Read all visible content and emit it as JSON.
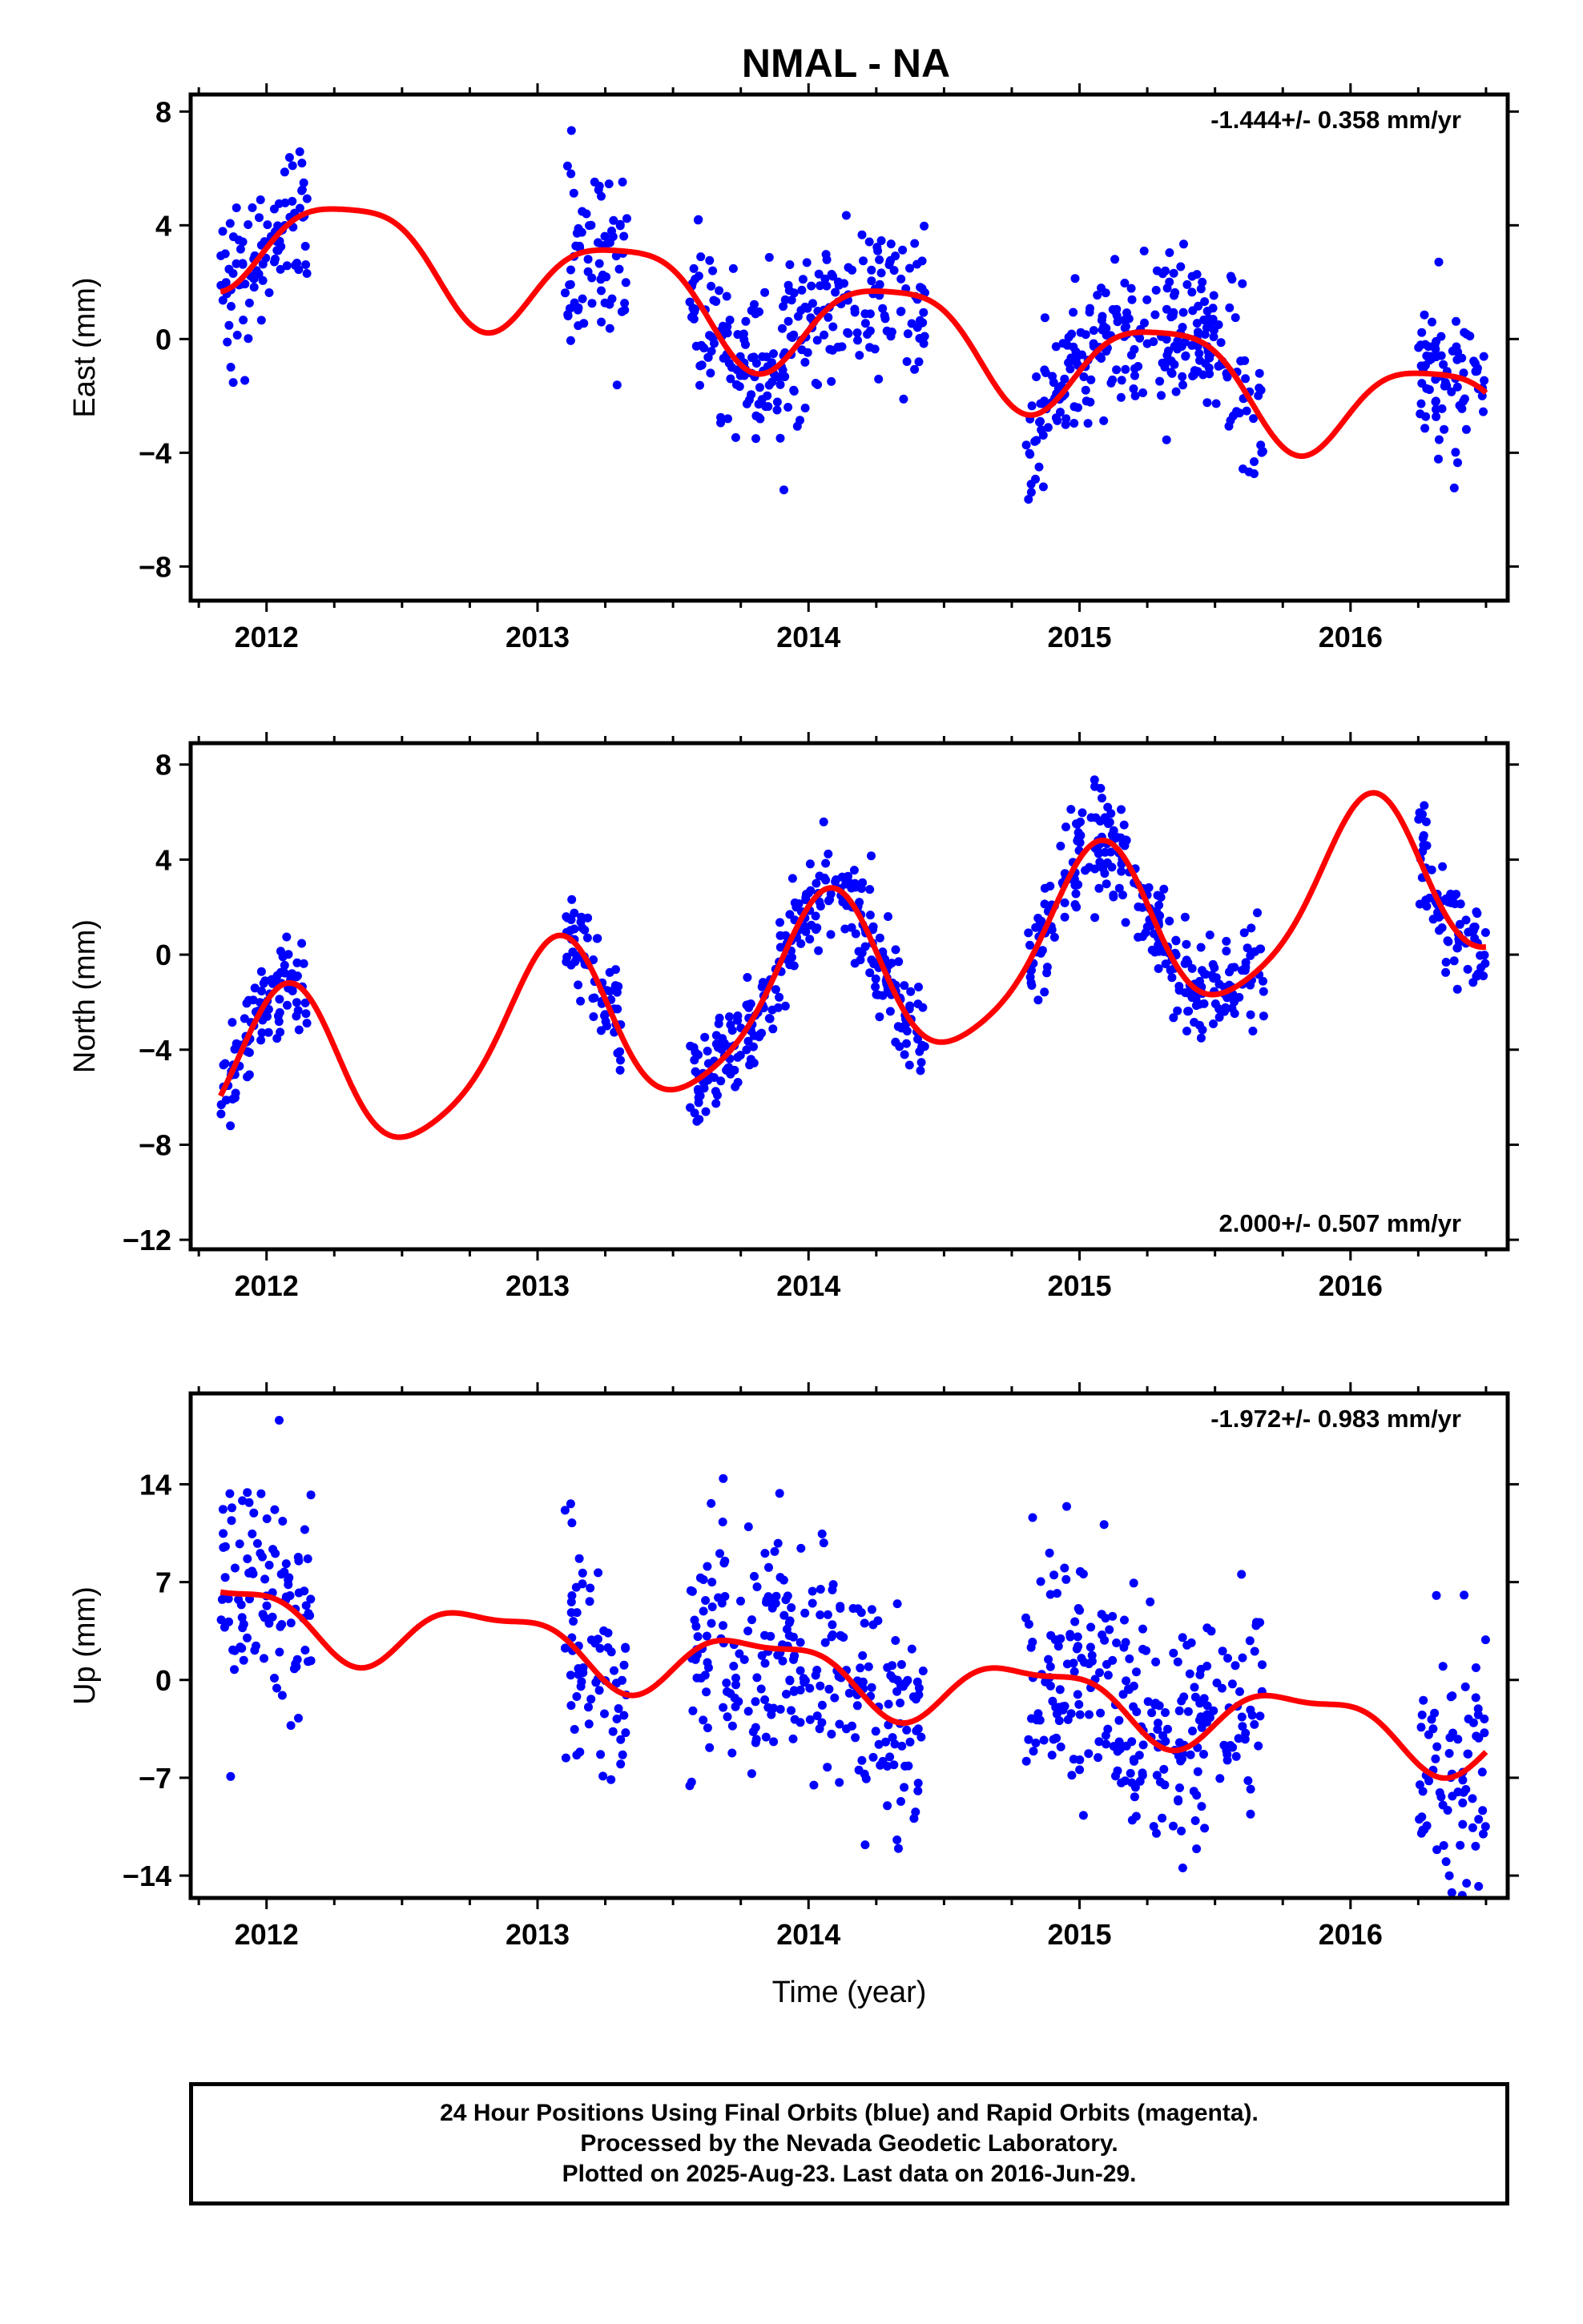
{
  "title": "NMAL - NA",
  "colors": {
    "points": "#0000ff",
    "model": "#ff0000",
    "frame": "#000000"
  },
  "chart_data": [
    {
      "type": "scatter",
      "ylabel": "East (mm)",
      "xlabel": "",
      "rate_text": "-1.444+/- 0.358 mm/yr",
      "rate_position": "top-right",
      "xlim": [
        2011.72,
        2016.58
      ],
      "ylim": [
        -9.2,
        8.6
      ],
      "xticks": [
        2012,
        2013,
        2014,
        2015,
        2016
      ],
      "xtick_labels": [
        "2012",
        "2013",
        "2014",
        "2015",
        "2016"
      ],
      "yticks": [
        8,
        4,
        0,
        -4,
        -8
      ],
      "ytick_labels": [
        "8",
        "4",
        "0",
        "−4",
        "−8"
      ],
      "segments": [
        [
          2011.83,
          2012.15
        ],
        [
          2013.1,
          2013.33
        ],
        [
          2013.56,
          2014.43
        ],
        [
          2014.8,
          2015.68
        ],
        [
          2016.25,
          2016.5
        ]
      ],
      "model_params": {
        "x0": 2014.0,
        "rate": -1.444,
        "offset": 0.7,
        "amp": 1.8,
        "phase": -0.4,
        "amp2": 0.4,
        "phase2": 0.9
      },
      "noise": 1.35,
      "n_points": 760
    },
    {
      "type": "scatter",
      "ylabel": "North (mm)",
      "xlabel": "",
      "rate_text": "2.000+/- 0.507 mm/yr",
      "rate_position": "bottom-right",
      "xlim": [
        2011.72,
        2016.58
      ],
      "ylim": [
        -12.4,
        8.9
      ],
      "xticks": [
        2012,
        2013,
        2014,
        2015,
        2016
      ],
      "xtick_labels": [
        "2012",
        "2013",
        "2014",
        "2015",
        "2016"
      ],
      "yticks": [
        8,
        4,
        0,
        -4,
        -8,
        -12
      ],
      "ytick_labels": [
        "8",
        "4",
        "0",
        "−4",
        "−8",
        "−12"
      ],
      "segments": [
        [
          2011.83,
          2012.15
        ],
        [
          2013.1,
          2013.31
        ],
        [
          2013.56,
          2014.43
        ],
        [
          2014.8,
          2015.68
        ],
        [
          2016.25,
          2016.5
        ]
      ],
      "model_params": {
        "x0": 2014.0,
        "rate": 2.0,
        "offset": -1.5,
        "amp": 3.6,
        "phase": 1.2,
        "amp2": 0.6,
        "phase2": 0.3
      },
      "noise": 1.05,
      "n_points": 760
    },
    {
      "type": "scatter",
      "ylabel": "Up (mm)",
      "xlabel": "Time (year)",
      "rate_text": "-1.972+/- 0.983 mm/yr",
      "rate_position": "top-right",
      "xlim": [
        2011.72,
        2016.58
      ],
      "ylim": [
        -15.6,
        20.5
      ],
      "xticks": [
        2012,
        2013,
        2014,
        2015,
        2016
      ],
      "xtick_labels": [
        "2012",
        "2013",
        "2014",
        "2015",
        "2016"
      ],
      "yticks": [
        14,
        7,
        0,
        -7,
        -14
      ],
      "ytick_labels": [
        "14",
        "7",
        "0",
        "−7",
        "−14"
      ],
      "segments": [
        [
          2011.83,
          2012.17
        ],
        [
          2013.1,
          2013.33
        ],
        [
          2013.56,
          2014.43
        ],
        [
          2014.8,
          2015.68
        ],
        [
          2016.25,
          2016.5
        ]
      ],
      "model_params": {
        "x0": 2014.0,
        "rate": -1.972,
        "offset": 0.6,
        "amp": 2.2,
        "phase": 2.6,
        "amp2": 0.8,
        "phase2": 0.4
      },
      "noise": 4.2,
      "n_points": 760
    }
  ],
  "footer": {
    "line1": "24 Hour Positions Using Final Orbits (blue) and Rapid Orbits (magenta).",
    "line2": "Processed by the Nevada Geodetic Laboratory.",
    "line3": "Plotted on 2025-Aug-23. Last data on 2016-Jun-29."
  }
}
